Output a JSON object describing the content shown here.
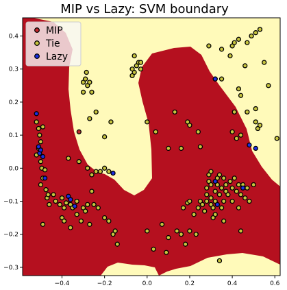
{
  "chart_data": {
    "type": "scatter",
    "title": "MIP vs Lazy: SVM boundary",
    "xlabel": "",
    "ylabel": "",
    "xlim": [
      -0.585,
      0.625
    ],
    "ylim": [
      -0.325,
      0.455
    ],
    "x_ticks": [
      -0.4,
      -0.2,
      0.0,
      0.2,
      0.4,
      0.6
    ],
    "x_tick_labels": [
      "−0.4",
      "−0.2",
      "0.0",
      "0.2",
      "0.4",
      "0.6"
    ],
    "y_ticks": [
      -0.3,
      -0.2,
      -0.1,
      0.0,
      0.1,
      0.2,
      0.3,
      0.4
    ],
    "y_tick_labels": [
      "−0.3",
      "−0.2",
      "−0.1",
      "0.0",
      "0.1",
      "0.2",
      "0.3",
      "0.4"
    ],
    "grid": false,
    "legend_position": "top-left",
    "colors": {
      "region_mip": "#b5101f",
      "region_lazy": "#fffaba",
      "mip": "#c1282c",
      "tie": "#c7c43e",
      "lazy": "#1b2fe0",
      "marker_edge": "#000000"
    },
    "series": [
      {
        "name": "MIP",
        "points": [
          [
            -0.32,
            0.11
          ]
        ]
      },
      {
        "name": "Tie",
        "points": [
          [
            -0.52,
            0.14
          ],
          [
            -0.51,
            0.12
          ],
          [
            -0.505,
            0.1
          ],
          [
            -0.5,
            0.08
          ],
          [
            -0.51,
            0.06
          ],
          [
            -0.52,
            0.04
          ],
          [
            -0.5,
            0.02
          ],
          [
            -0.495,
            0.0
          ],
          [
            -0.48,
            -0.005
          ],
          [
            -0.49,
            -0.03
          ],
          [
            -0.5,
            -0.05
          ],
          [
            -0.475,
            -0.065
          ],
          [
            -0.47,
            -0.09
          ],
          [
            -0.46,
            -0.11
          ],
          [
            -0.465,
            -0.08
          ],
          [
            -0.49,
            0.125
          ],
          [
            -0.49,
            -0.17
          ],
          [
            -0.44,
            -0.08
          ],
          [
            -0.43,
            -0.1
          ],
          [
            -0.41,
            -0.11
          ],
          [
            -0.4,
            -0.09
          ],
          [
            -0.39,
            -0.12
          ],
          [
            -0.38,
            -0.105
          ],
          [
            -0.36,
            -0.11
          ],
          [
            -0.35,
            -0.12
          ],
          [
            -0.4,
            -0.15
          ],
          [
            -0.39,
            -0.16
          ],
          [
            -0.36,
            -0.18
          ],
          [
            -0.33,
            -0.14
          ],
          [
            -0.31,
            -0.16
          ],
          [
            -0.3,
            -0.12
          ],
          [
            -0.29,
            -0.13
          ],
          [
            -0.28,
            -0.11
          ],
          [
            -0.27,
            -0.17
          ],
          [
            -0.25,
            -0.11
          ],
          [
            -0.23,
            -0.12
          ],
          [
            -0.2,
            -0.15
          ],
          [
            -0.18,
            -0.16
          ],
          [
            -0.16,
            -0.2
          ],
          [
            -0.15,
            -0.19
          ],
          [
            -0.14,
            -0.23
          ],
          [
            -0.26,
            -0.07
          ],
          [
            -0.33,
            -0.1
          ],
          [
            -0.37,
            0.03
          ],
          [
            -0.32,
            0.02
          ],
          [
            -0.28,
            0.0
          ],
          [
            -0.26,
            -0.02
          ],
          [
            -0.24,
            -0.01
          ],
          [
            -0.22,
            -0.01
          ],
          [
            -0.2,
            0.0
          ],
          [
            -0.18,
            -0.01
          ],
          [
            -0.17,
            0.14
          ],
          [
            -0.2,
            0.095
          ],
          [
            -0.27,
            0.15
          ],
          [
            -0.24,
            0.17
          ],
          [
            -0.3,
            0.26
          ],
          [
            -0.29,
            0.27
          ],
          [
            -0.28,
            0.25
          ],
          [
            -0.27,
            0.26
          ],
          [
            -0.26,
            0.23
          ],
          [
            -0.285,
            0.29
          ],
          [
            -0.3,
            0.23
          ],
          [
            -0.07,
            0.28
          ],
          [
            -0.07,
            0.3
          ],
          [
            -0.06,
            0.29
          ],
          [
            -0.05,
            0.31
          ],
          [
            -0.04,
            0.32
          ],
          [
            -0.03,
            0.3
          ],
          [
            -0.06,
            0.34
          ],
          [
            -0.03,
            0.32
          ],
          [
            0.0,
            0.14
          ],
          [
            0.04,
            0.11
          ],
          [
            0.13,
            0.17
          ],
          [
            0.16,
            0.06
          ],
          [
            0.19,
            0.14
          ],
          [
            0.2,
            0.13
          ],
          [
            0.24,
            0.11
          ],
          [
            0.25,
            0.065
          ],
          [
            0.1,
            0.06
          ],
          [
            0.0,
            -0.19
          ],
          [
            0.03,
            -0.245
          ],
          [
            0.07,
            -0.17
          ],
          [
            0.09,
            -0.255
          ],
          [
            0.1,
            -0.21
          ],
          [
            0.14,
            -0.19
          ],
          [
            0.16,
            -0.2
          ],
          [
            0.18,
            -0.23
          ],
          [
            0.2,
            -0.19
          ],
          [
            0.23,
            -0.2
          ],
          [
            0.17,
            -0.12
          ],
          [
            0.19,
            -0.105
          ],
          [
            0.2,
            -0.1
          ],
          [
            0.22,
            -0.14
          ],
          [
            0.24,
            -0.12
          ],
          [
            0.25,
            -0.1
          ],
          [
            0.26,
            -0.11
          ],
          [
            0.27,
            -0.13
          ],
          [
            0.28,
            -0.1
          ],
          [
            0.28,
            -0.08
          ],
          [
            0.28,
            -0.06
          ],
          [
            0.29,
            -0.04
          ],
          [
            0.29,
            -0.02
          ],
          [
            0.3,
            -0.01
          ],
          [
            0.3,
            -0.05
          ],
          [
            0.3,
            -0.09
          ],
          [
            0.3,
            -0.11
          ],
          [
            0.31,
            -0.12
          ],
          [
            0.32,
            -0.14
          ],
          [
            0.32,
            -0.1
          ],
          [
            0.32,
            -0.07
          ],
          [
            0.33,
            -0.05
          ],
          [
            0.33,
            -0.03
          ],
          [
            0.34,
            -0.02
          ],
          [
            0.34,
            -0.08
          ],
          [
            0.35,
            -0.12
          ],
          [
            0.35,
            -0.06
          ],
          [
            0.36,
            -0.03
          ],
          [
            0.36,
            -0.1
          ],
          [
            0.37,
            -0.07
          ],
          [
            0.37,
            -0.05
          ],
          [
            0.38,
            -0.08
          ],
          [
            0.39,
            -0.04
          ],
          [
            0.4,
            -0.06
          ],
          [
            0.4,
            -0.1
          ],
          [
            0.41,
            -0.03
          ],
          [
            0.42,
            -0.07
          ],
          [
            0.43,
            -0.05
          ],
          [
            0.43,
            -0.12
          ],
          [
            0.44,
            -0.08
          ],
          [
            0.45,
            -0.05
          ],
          [
            0.46,
            -0.09
          ],
          [
            0.47,
            -0.06
          ],
          [
            0.48,
            -0.1
          ],
          [
            0.5,
            -0.05
          ],
          [
            0.44,
            -0.19
          ],
          [
            0.34,
            -0.28
          ],
          [
            0.36,
            -0.16
          ],
          [
            0.31,
            -0.15
          ],
          [
            0.29,
            0.37
          ],
          [
            0.32,
            0.27
          ],
          [
            0.35,
            0.36
          ],
          [
            0.35,
            0.27
          ],
          [
            0.39,
            0.34
          ],
          [
            0.4,
            0.37
          ],
          [
            0.41,
            0.38
          ],
          [
            0.43,
            0.39
          ],
          [
            0.47,
            0.38
          ],
          [
            0.49,
            0.4
          ],
          [
            0.51,
            0.41
          ],
          [
            0.53,
            0.42
          ],
          [
            0.43,
            0.24
          ],
          [
            0.44,
            0.22
          ],
          [
            0.41,
            0.17
          ],
          [
            0.4,
            0.11
          ],
          [
            0.42,
            0.09
          ],
          [
            0.44,
            0.1
          ],
          [
            0.47,
            0.17
          ],
          [
            0.51,
            0.18
          ],
          [
            0.51,
            0.14
          ],
          [
            0.52,
            0.12
          ],
          [
            0.53,
            0.13
          ],
          [
            0.55,
            0.32
          ],
          [
            0.57,
            0.25
          ],
          [
            0.61,
            0.09
          ],
          [
            0.46,
            0.31
          ]
        ]
      },
      {
        "name": "Lazy",
        "points": [
          [
            -0.52,
            0.165
          ],
          [
            -0.51,
            0.065
          ],
          [
            -0.505,
            0.045
          ],
          [
            -0.5,
            0.055
          ],
          [
            -0.49,
            0.035
          ],
          [
            -0.48,
            -0.03
          ],
          [
            -0.37,
            -0.085
          ],
          [
            -0.36,
            -0.095
          ],
          [
            -0.34,
            -0.115
          ],
          [
            -0.16,
            -0.015
          ],
          [
            0.32,
            -0.04
          ],
          [
            0.33,
            -0.11
          ],
          [
            0.45,
            -0.06
          ],
          [
            0.32,
            0.27
          ],
          [
            0.48,
            0.07
          ],
          [
            0.51,
            0.06
          ]
        ]
      }
    ]
  }
}
